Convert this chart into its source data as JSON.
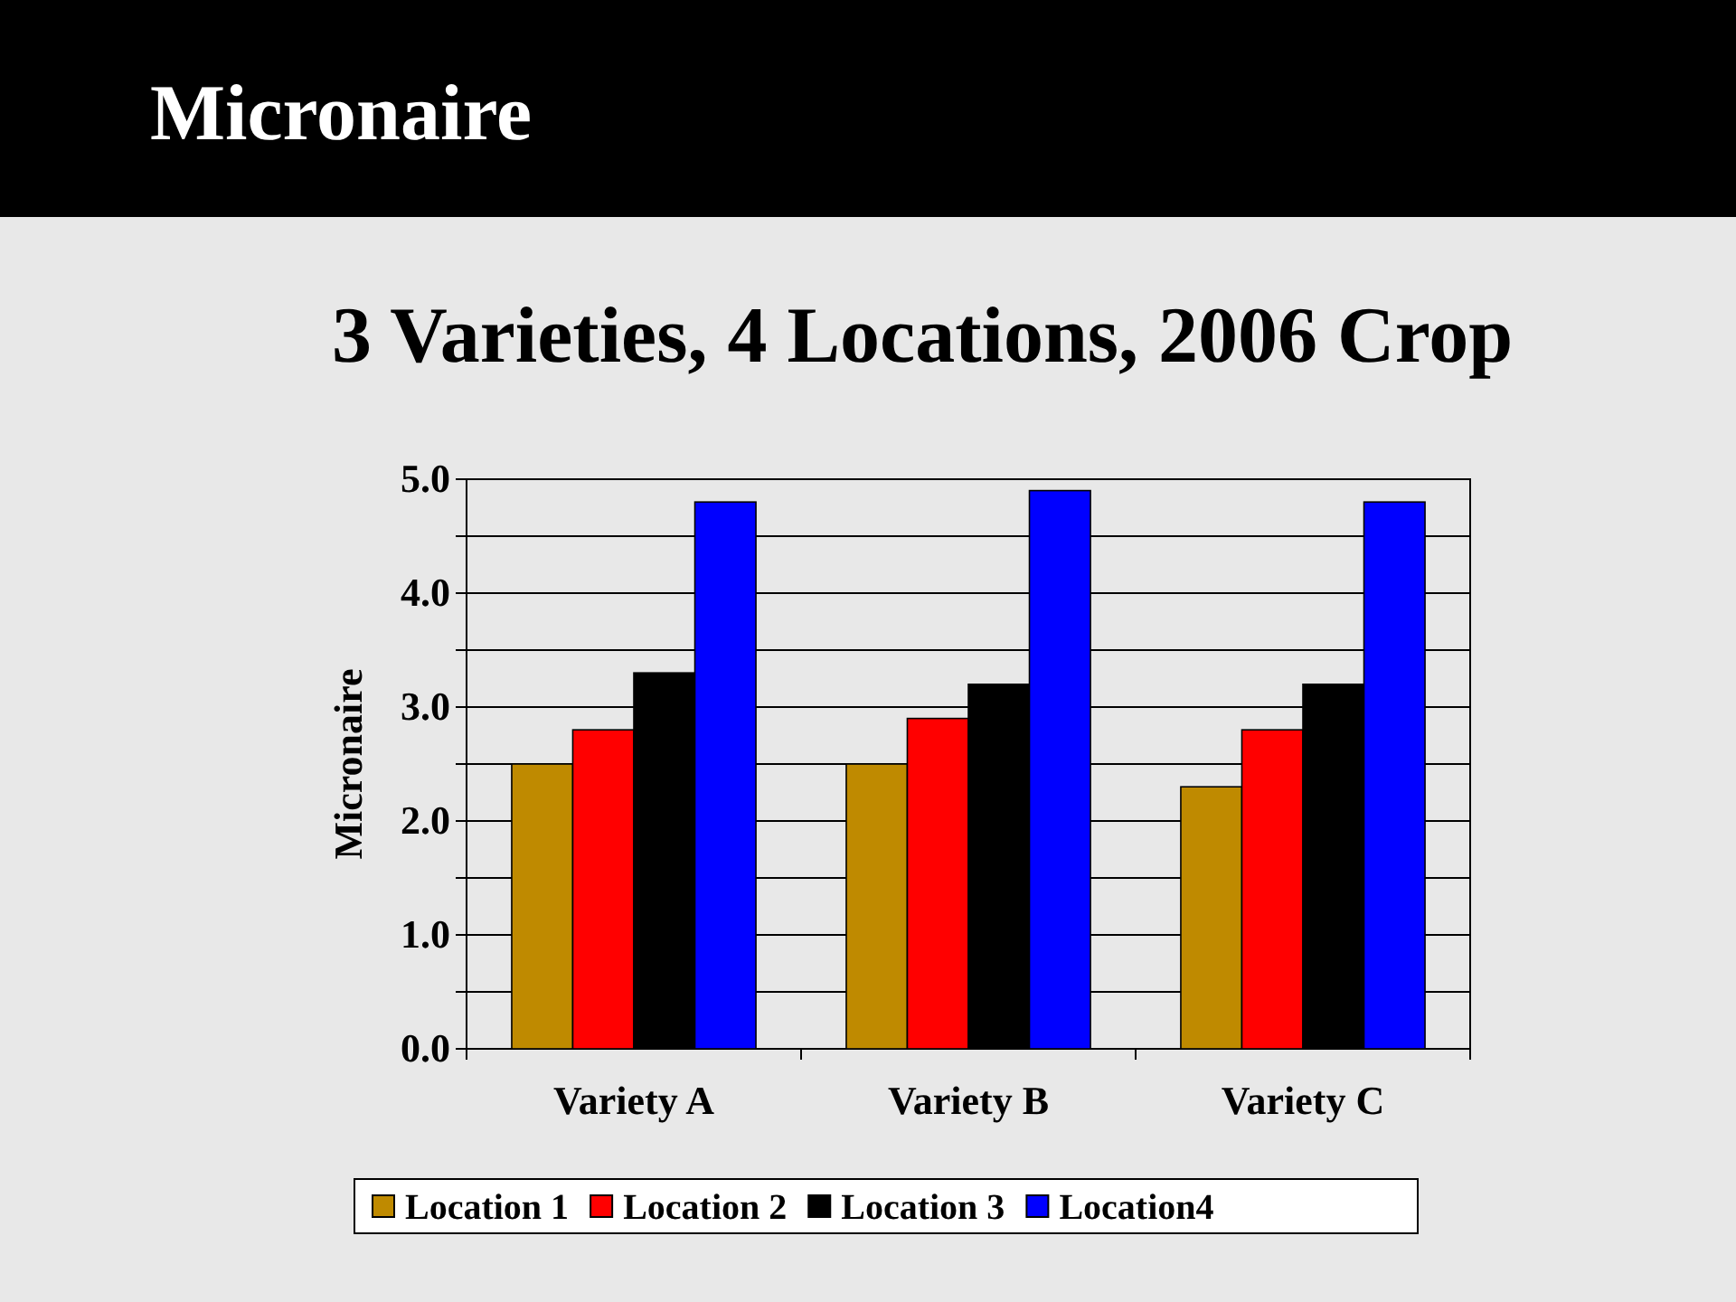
{
  "chart_data": {
    "type": "bar",
    "title": "Micronaire",
    "subtitle": "3 Varieties, 4 Locations, 2006 Crop",
    "ylabel": "Micronaire",
    "categories": [
      "Variety A",
      "Variety B",
      "Variety C"
    ],
    "series": [
      {
        "name": "Location 1",
        "color": "#bf8a00",
        "values": [
          2.5,
          2.5,
          2.3
        ]
      },
      {
        "name": "Location 2",
        "color": "#ff0000",
        "values": [
          2.8,
          2.9,
          2.8
        ]
      },
      {
        "name": "Location 3",
        "color": "#000000",
        "values": [
          3.3,
          3.2,
          3.2
        ]
      },
      {
        "name": "Location4",
        "color": "#0000ff",
        "values": [
          4.8,
          4.9,
          4.8
        ]
      }
    ],
    "ylim": [
      0,
      5
    ],
    "yticks": [
      "0.0",
      {
        "value": 0.5,
        "label": null
      },
      {
        "value": 1,
        "label": "1.0"
      },
      {
        "value": 1.5,
        "label": null
      },
      {
        "value": 2,
        "label": "2.0"
      },
      {
        "value": 2.5,
        "label": null
      },
      {
        "value": 3,
        "label": "3.0"
      },
      {
        "value": 3.5,
        "label": null
      },
      {
        "value": 4,
        "label": "4.0"
      },
      {
        "value": 4.5,
        "label": null
      },
      {
        "value": 5,
        "label": "5.0"
      }
    ],
    "grid": true,
    "legend": "bottom"
  }
}
